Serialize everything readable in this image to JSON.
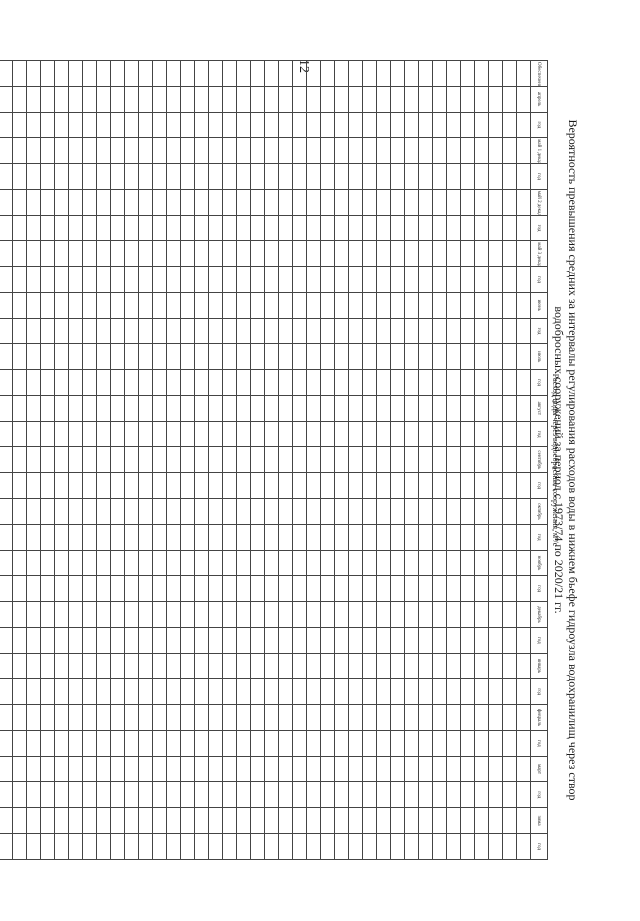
{
  "page_number": "12",
  "title": "Вероятность превышения средних за интервалы регулирования расходов воды в нижнем бьефе гидроузла водохранилищ через створ водобросных сооружений за период с 1973/74 по 2020/21 гг.",
  "table_caption": "Расход воды через водосбросные сооружения, м³/с",
  "columns": [
    "Обеспеченность, %",
    "апрель",
    "год",
    "май 1 декада",
    "год",
    "май 2 декада",
    "год",
    "май 3 декада",
    "год",
    "июнь",
    "год",
    "июль",
    "год",
    "август",
    "год",
    "сентябрь",
    "год",
    "октябрь",
    "год",
    "ноябрь",
    "год",
    "декабрь",
    "год",
    "январь",
    "год",
    "февраль",
    "год",
    "март",
    "год",
    "зима",
    "год"
  ],
  "rows": 38
}
